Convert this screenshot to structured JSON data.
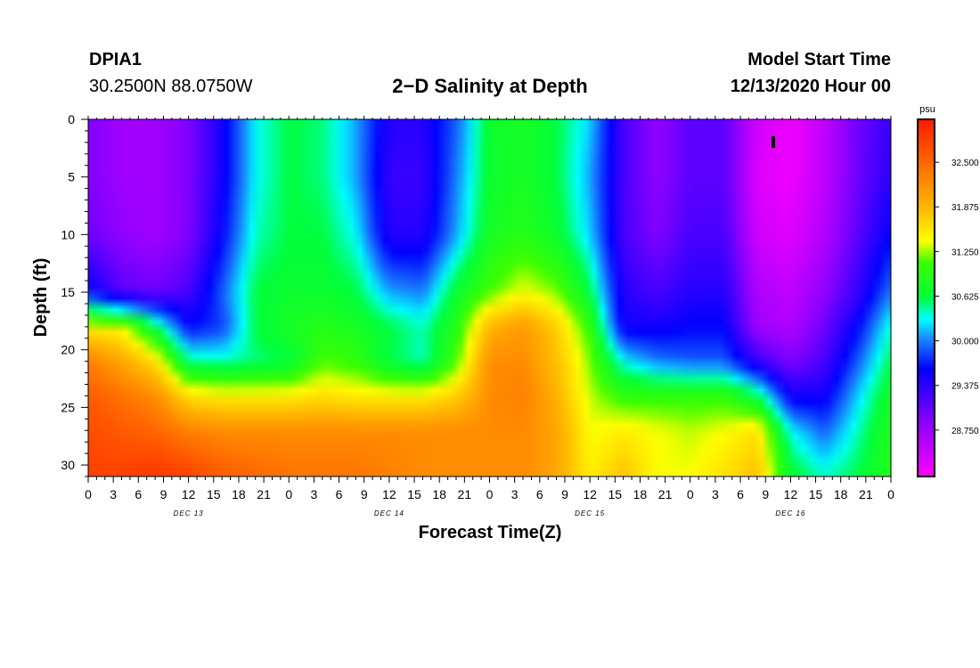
{
  "header": {
    "station": "DPIA1",
    "coords": "30.2500N 88.0750W",
    "title": "2−D Salinity at Depth",
    "model_start_label": "Model Start Time",
    "model_start_value": "12/13/2020 Hour 00"
  },
  "chart_data": {
    "type": "heatmap",
    "title": "2−D Salinity at Depth",
    "xlabel": "Forecast Time(Z)",
    "ylabel": "Depth (ft)",
    "x_range_hours": [
      0,
      96
    ],
    "y_range_ft": [
      0,
      31
    ],
    "y_ticks": [
      0,
      5,
      10,
      15,
      20,
      25,
      30
    ],
    "x_tick_labels": [
      "0",
      "3",
      "6",
      "9",
      "12",
      "15",
      "18",
      "21",
      "0",
      "3",
      "6",
      "9",
      "12",
      "15",
      "18",
      "21",
      "0",
      "3",
      "6",
      "9",
      "12",
      "15",
      "18",
      "21",
      "0",
      "3",
      "6",
      "9",
      "12",
      "15",
      "18",
      "21",
      "0"
    ],
    "day_labels": [
      {
        "text": "DEC 13",
        "hour": 12
      },
      {
        "text": "DEC 14",
        "hour": 36
      },
      {
        "text": "DEC 15",
        "hour": 60
      },
      {
        "text": "DEC 16",
        "hour": 84
      }
    ],
    "colorbar": {
      "unit": "psu",
      "min": 28.1,
      "max": 33.1,
      "tick_labels": [
        "32.500",
        "31.875",
        "31.250",
        "30.625",
        "30.000",
        "29.375",
        "28.750"
      ],
      "tick_values": [
        32.5,
        31.875,
        31.25,
        30.625,
        30.0,
        29.375,
        28.75
      ]
    },
    "depth_grid_ft": [
      0,
      5,
      10,
      15,
      18,
      21,
      24,
      27,
      31
    ],
    "time_grid_hours": [
      0,
      4,
      8,
      12,
      16,
      20,
      24,
      28,
      32,
      36,
      40,
      44,
      48,
      52,
      56,
      60,
      64,
      68,
      72,
      76,
      80,
      84,
      88,
      92,
      96
    ],
    "salinity_psu": [
      [
        28.9,
        28.7,
        28.7,
        28.9,
        29.5,
        30.3,
        30.6,
        30.5,
        30.1,
        29.4,
        29.4,
        29.9,
        30.7,
        30.8,
        30.6,
        30.2,
        29.2,
        28.8,
        29.1,
        29.1,
        28.4,
        28.2,
        28.5,
        29.0,
        29.3
      ],
      [
        28.9,
        28.7,
        28.7,
        28.9,
        29.5,
        30.3,
        30.6,
        30.5,
        30.1,
        29.3,
        29.3,
        30.0,
        30.7,
        30.8,
        30.6,
        30.1,
        29.2,
        28.8,
        29.1,
        29.1,
        28.3,
        28.2,
        28.5,
        29.0,
        29.4
      ],
      [
        29.0,
        28.8,
        28.7,
        28.9,
        29.6,
        30.4,
        30.6,
        30.6,
        30.3,
        29.4,
        29.4,
        30.1,
        30.8,
        30.9,
        30.7,
        30.2,
        29.2,
        28.9,
        29.2,
        29.2,
        28.4,
        28.3,
        28.6,
        29.1,
        29.6
      ],
      [
        29.6,
        29.1,
        29.0,
        29.2,
        29.9,
        30.6,
        30.7,
        30.7,
        30.6,
        30.1,
        30.0,
        30.7,
        31.1,
        31.4,
        31.2,
        30.6,
        29.4,
        29.2,
        29.4,
        29.4,
        28.6,
        28.5,
        28.8,
        29.3,
        30.0
      ],
      [
        31.5,
        31.4,
        30.6,
        29.6,
        29.8,
        30.6,
        30.8,
        30.9,
        30.8,
        30.6,
        30.4,
        30.9,
        31.9,
        32.1,
        31.7,
        31.0,
        29.5,
        29.5,
        29.6,
        29.6,
        28.7,
        28.6,
        29.0,
        29.6,
        30.4
      ],
      [
        32.3,
        32.0,
        31.6,
        30.5,
        30.4,
        30.5,
        30.6,
        31.1,
        31.0,
        30.6,
        30.4,
        31.1,
        32.2,
        32.2,
        31.8,
        31.2,
        30.3,
        30.0,
        29.9,
        29.9,
        29.3,
        28.9,
        29.2,
        29.9,
        30.6
      ],
      [
        32.6,
        32.4,
        32.2,
        31.6,
        31.5,
        31.5,
        31.5,
        31.6,
        31.5,
        31.5,
        31.5,
        31.7,
        32.2,
        32.3,
        31.9,
        31.3,
        31.0,
        31.0,
        31.0,
        31.0,
        30.6,
        29.5,
        29.5,
        30.2,
        30.8
      ],
      [
        32.7,
        32.6,
        32.5,
        32.3,
        32.2,
        32.2,
        32.2,
        32.2,
        32.2,
        32.2,
        32.2,
        32.2,
        32.2,
        32.2,
        32.0,
        31.4,
        31.5,
        31.4,
        31.3,
        31.4,
        31.6,
        30.3,
        29.9,
        30.4,
        30.9
      ],
      [
        32.8,
        32.8,
        32.9,
        32.8,
        32.6,
        32.5,
        32.4,
        32.4,
        32.4,
        32.3,
        32.2,
        32.2,
        32.2,
        32.2,
        32.0,
        31.5,
        31.8,
        31.4,
        31.4,
        31.6,
        31.8,
        30.7,
        30.4,
        30.6,
        30.9
      ]
    ]
  }
}
